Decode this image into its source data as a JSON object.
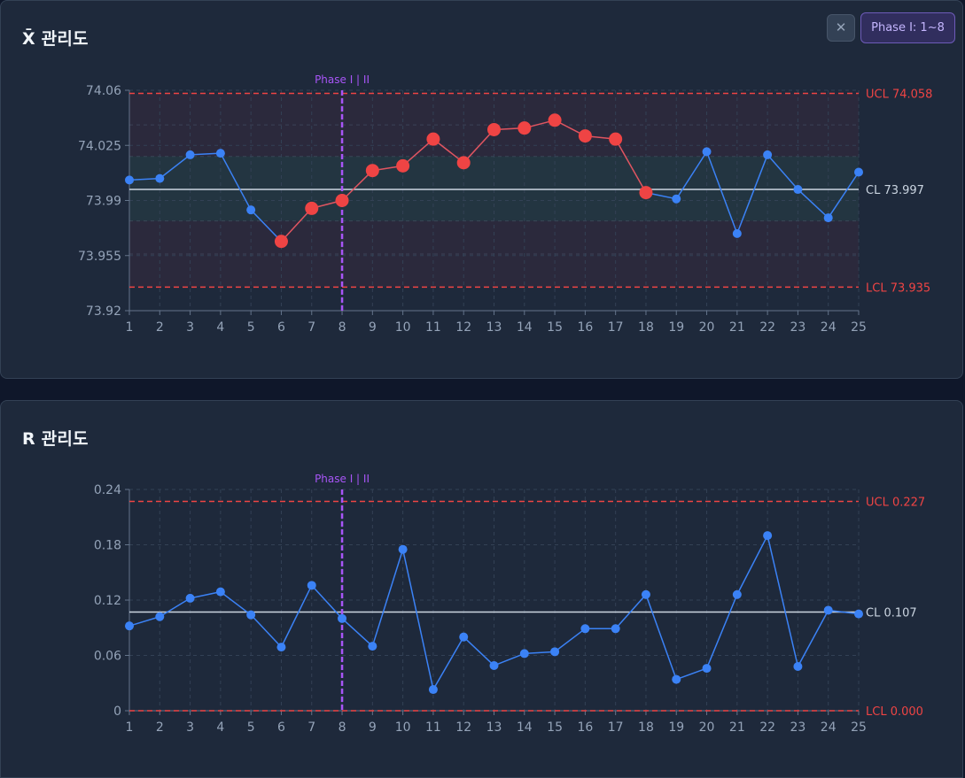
{
  "xbar_panel": {
    "title": "X̄ 관리도",
    "close_icon": "close-icon",
    "close_glyph": "✕",
    "phase_button_label": "Phase I: 1~8"
  },
  "r_panel": {
    "title": "R 관리도"
  },
  "colors": {
    "normal_point": "#3b82f6",
    "violation_point": "#ef4444",
    "limit_line": "#ef4444",
    "center_line": "#cbd5e1",
    "phase_line": "#a855f7"
  },
  "chart_data": [
    {
      "type": "line",
      "title": "X̄ 관리도",
      "categories": [
        "1",
        "2",
        "3",
        "4",
        "5",
        "6",
        "7",
        "8",
        "9",
        "10",
        "11",
        "12",
        "13",
        "14",
        "15",
        "16",
        "17",
        "18",
        "19",
        "20",
        "21",
        "22",
        "23",
        "24",
        "25"
      ],
      "series": [
        {
          "values": [
            74.003,
            74.004,
            74.019,
            74.02,
            73.984,
            73.964,
            73.985,
            73.99,
            74.009,
            74.012,
            74.029,
            74.014,
            74.035,
            74.036,
            74.041,
            74.031,
            74.029,
            73.995,
            73.991,
            74.021,
            73.969,
            74.019,
            73.997,
            73.979,
            74.008
          ],
          "violations": [
            6,
            7,
            8,
            9,
            10,
            11,
            12,
            13,
            14,
            15,
            16,
            17,
            18
          ]
        }
      ],
      "ylim": [
        73.92,
        74.06
      ],
      "yticks": [
        "74.06",
        "74.025",
        "73.99",
        "73.955",
        "73.92"
      ],
      "grid": true,
      "phase_split": {
        "after": 8,
        "label": "Phase I | II"
      },
      "limits": {
        "ucl": 74.058,
        "cl": 73.997,
        "lcl": 73.935,
        "ucl_label": "UCL 74.058",
        "cl_label": "CL 73.997",
        "lcl_label": "LCL 73.935"
      },
      "zones": {
        "inner": [
          73.977,
          74.018
        ],
        "outer_band_edges": [
          73.956,
          74.038
        ]
      }
    },
    {
      "type": "line",
      "title": "R 관리도",
      "categories": [
        "1",
        "2",
        "3",
        "4",
        "5",
        "6",
        "7",
        "8",
        "9",
        "10",
        "11",
        "12",
        "13",
        "14",
        "15",
        "16",
        "17",
        "18",
        "19",
        "20",
        "21",
        "22",
        "23",
        "24",
        "25"
      ],
      "series": [
        {
          "values": [
            0.092,
            0.102,
            0.122,
            0.129,
            0.104,
            0.069,
            0.136,
            0.1,
            0.07,
            0.175,
            0.023,
            0.08,
            0.049,
            0.062,
            0.064,
            0.089,
            0.089,
            0.126,
            0.034,
            0.046,
            0.126,
            0.19,
            0.048,
            0.109,
            0.105
          ],
          "violations": []
        }
      ],
      "ylim": [
        0,
        0.24
      ],
      "yticks": [
        "0.24",
        "0.18",
        "0.12",
        "0.06",
        "0"
      ],
      "grid": true,
      "phase_split": {
        "after": 8,
        "label": "Phase I | II"
      },
      "limits": {
        "ucl": 0.227,
        "cl": 0.107,
        "lcl": 0.0,
        "ucl_label": "UCL 0.227",
        "cl_label": "CL 0.107",
        "lcl_label": "LCL 0.000"
      }
    }
  ]
}
